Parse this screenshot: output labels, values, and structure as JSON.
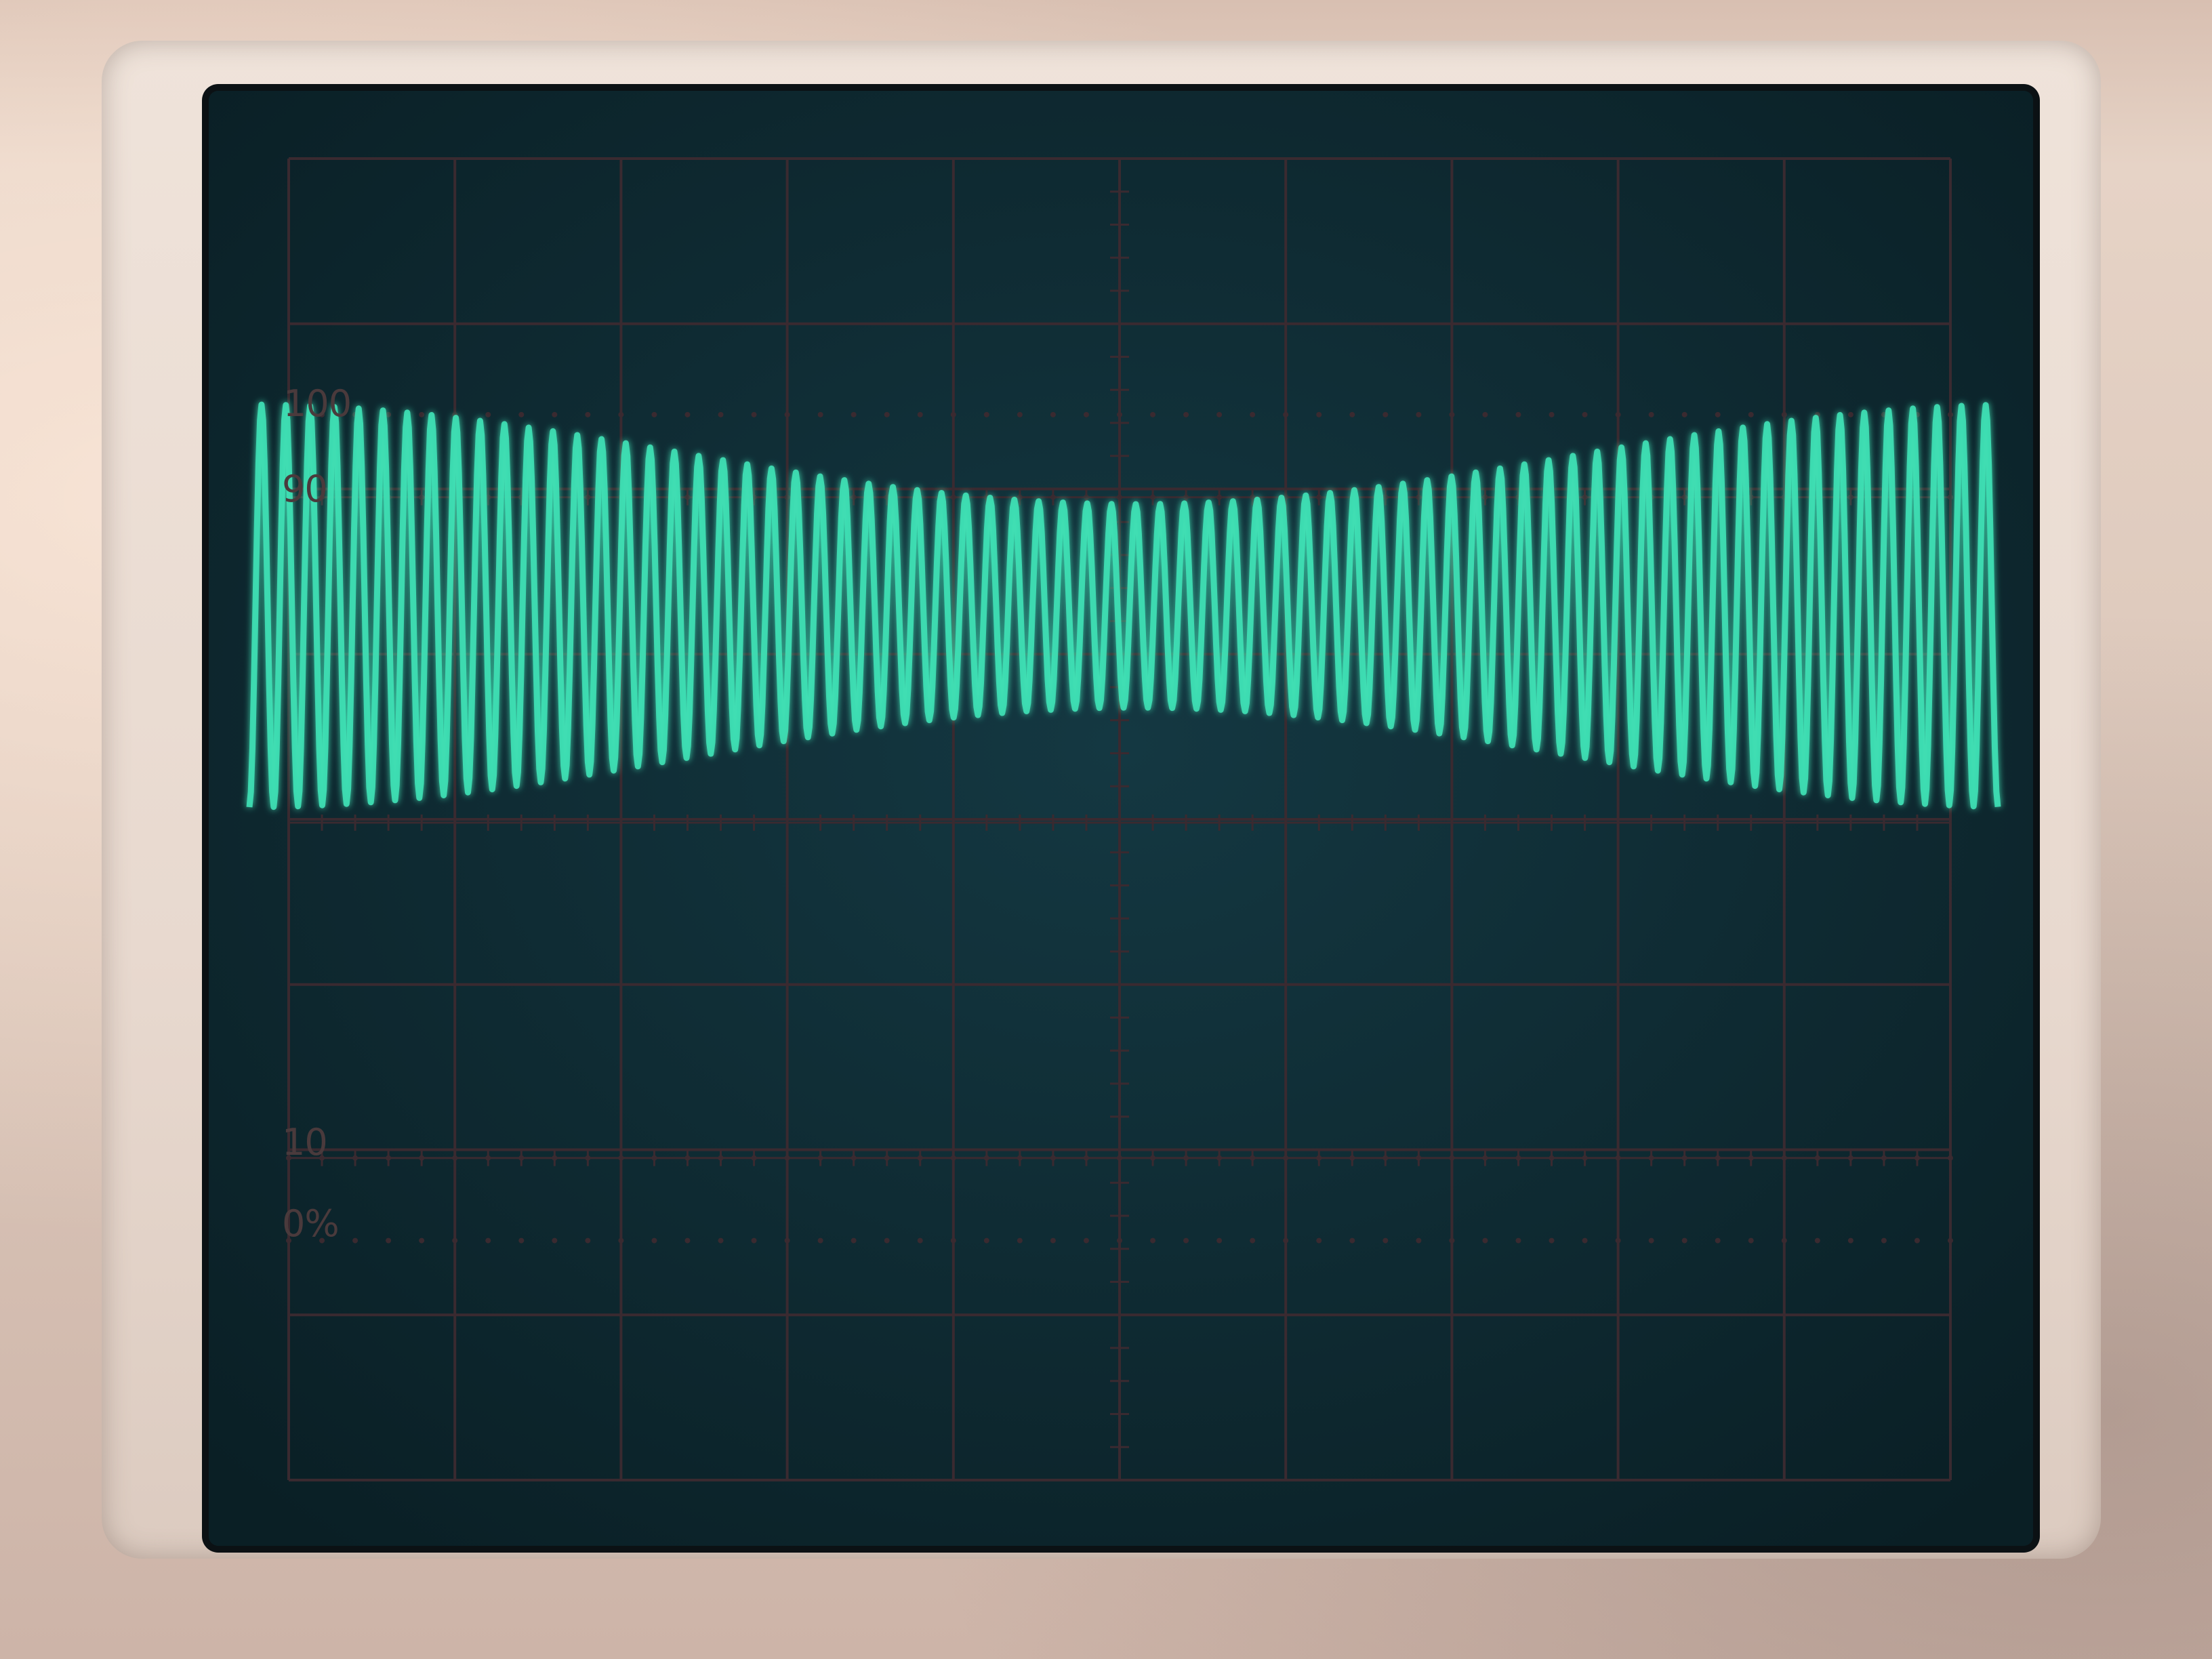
{
  "graticule": {
    "label_100": "100",
    "label_90": "90",
    "label_10": "10",
    "label_0": "0%"
  },
  "trace": {
    "description_name": "am-modulated-waveform",
    "color": "#3fe0b4",
    "screen_color": "#0e2a31",
    "grid_color": "#3a2a30",
    "carrier_cycles": 72
  }
}
